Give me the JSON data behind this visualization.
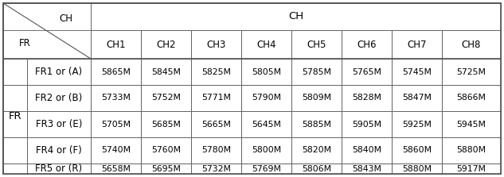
{
  "header_row": [
    "CH1",
    "CH2",
    "CH3",
    "CH4",
    "CH5",
    "CH6",
    "CH7",
    "CH8"
  ],
  "row_labels": [
    "FR1 or (A)",
    "FR2 or (B)",
    "FR3 or (E)",
    "FR4 or (F)",
    "FR5 or (R)"
  ],
  "table_data": [
    [
      "5865M",
      "5845M",
      "5825M",
      "5805M",
      "5785M",
      "5765M",
      "5745M",
      "5725M"
    ],
    [
      "5733M",
      "5752M",
      "5771M",
      "5790M",
      "5809M",
      "5828M",
      "5847M",
      "5866M"
    ],
    [
      "5705M",
      "5685M",
      "5665M",
      "5645M",
      "5885M",
      "5905M",
      "5925M",
      "5945M"
    ],
    [
      "5740M",
      "5760M",
      "5780M",
      "5800M",
      "5820M",
      "5840M",
      "5860M",
      "5880M"
    ],
    [
      "5658M",
      "5695M",
      "5732M",
      "5769M",
      "5806M",
      "5843M",
      "5880M",
      "5917M"
    ]
  ],
  "bg_color": "#ffffff",
  "line_color": "#555555",
  "text_color": "#000000",
  "data_font_size": 7.8,
  "header_font_size": 8.5,
  "label_font_size": 8.5,
  "fr_font_size": 9.5,
  "outer_lw": 1.2,
  "inner_lw": 0.6
}
